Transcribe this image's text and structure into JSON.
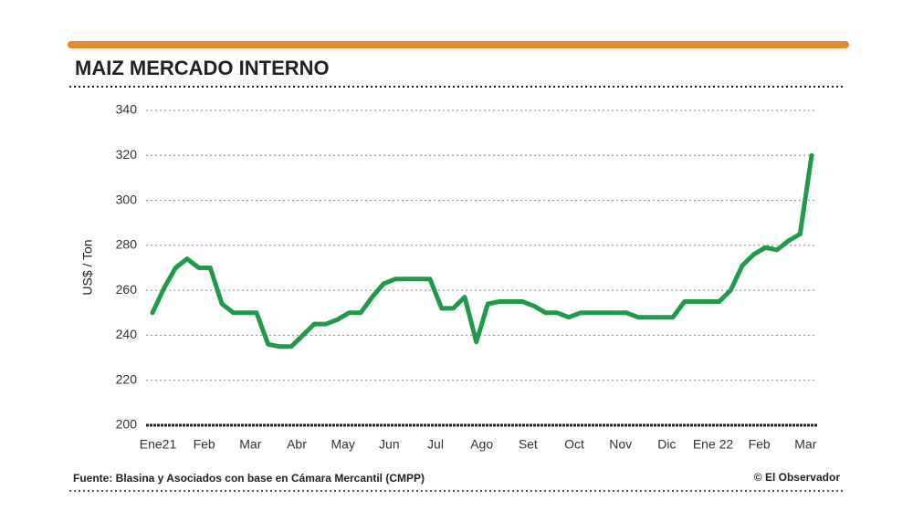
{
  "chart_data": {
    "type": "line",
    "title": "MAIZ MERCADO INTERNO",
    "y_label": "US$ / Ton",
    "source": "Fuente: Blasina y Asociados con base en Cámara Mercantil (CMPP)",
    "credit": "© El Observador",
    "categories": [
      "Ene21",
      null,
      null,
      null,
      "Feb",
      null,
      null,
      null,
      "Mar",
      null,
      null,
      null,
      "Abr",
      null,
      null,
      null,
      "May",
      null,
      null,
      null,
      "Jun",
      null,
      null,
      null,
      "Jul",
      null,
      null,
      null,
      "Ago",
      null,
      null,
      null,
      "Set",
      null,
      null,
      null,
      "Oct",
      null,
      null,
      null,
      "Nov",
      null,
      null,
      null,
      "Dic",
      null,
      null,
      null,
      "Ene 22",
      null,
      null,
      null,
      "Feb",
      null,
      null,
      null,
      "Mar",
      null
    ],
    "values": [
      250,
      261,
      270,
      274,
      270,
      270,
      254,
      250,
      250,
      250,
      236,
      235,
      235,
      240,
      245,
      245,
      247,
      250,
      250,
      257,
      263,
      265,
      265,
      265,
      265,
      252,
      252,
      257,
      237,
      254,
      255,
      255,
      255,
      253,
      250,
      250,
      248,
      250,
      250,
      250,
      250,
      250,
      248,
      248,
      248,
      248,
      255,
      255,
      255,
      255,
      260,
      271,
      276,
      279,
      278,
      282,
      285,
      320
    ],
    "color": "#1f9a4b",
    "ylim": [
      200,
      340
    ],
    "yticks": [
      200,
      220,
      240,
      260,
      280,
      300,
      320,
      340
    ],
    "grid": true
  }
}
